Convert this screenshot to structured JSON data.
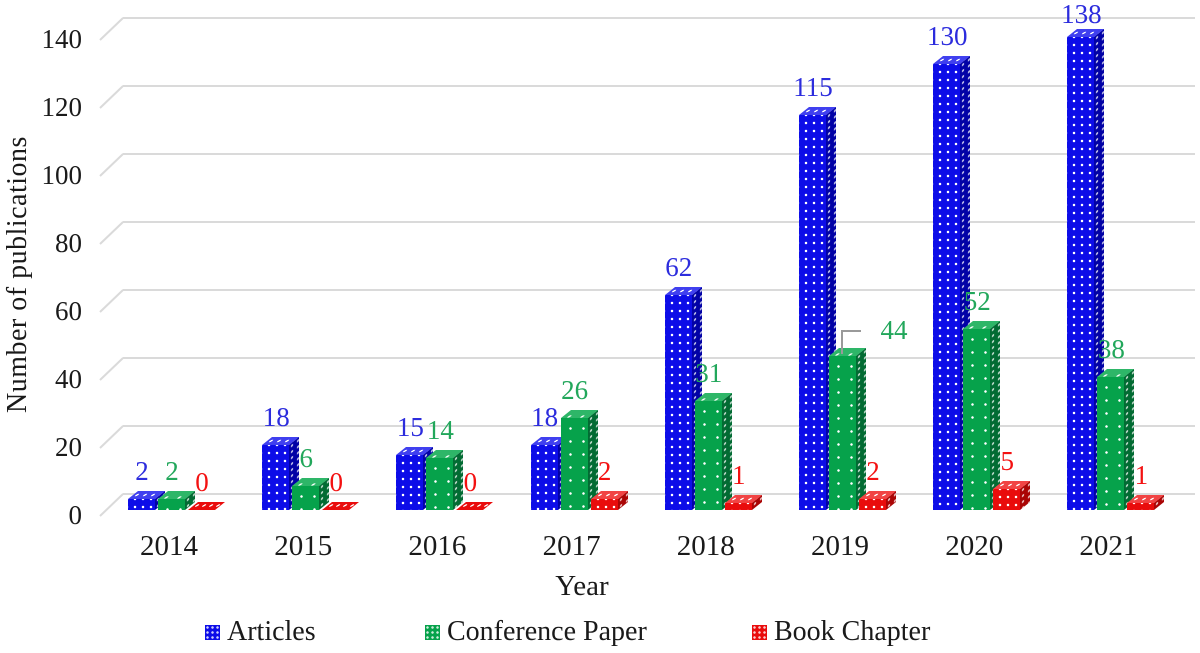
{
  "chart_data": {
    "type": "bar",
    "style": "3d-clustered-column",
    "title": "",
    "xlabel": "Year",
    "ylabel": "Number of publications",
    "categories": [
      "2014",
      "2015",
      "2016",
      "2017",
      "2018",
      "2019",
      "2020",
      "2021"
    ],
    "series": [
      {
        "name": "Articles",
        "values": [
          2,
          18,
          15,
          18,
          62,
          115,
          130,
          138
        ],
        "colors": {
          "front": "#0d0de8",
          "top": "#4040ef",
          "side": "#0202a6",
          "label": "#2c2cdd"
        },
        "dot_size": 8
      },
      {
        "name": "Conference Paper",
        "values": [
          2,
          6,
          14,
          26,
          31,
          44,
          52,
          38
        ],
        "colors": {
          "front": "#06a24b",
          "top": "#2eb668",
          "side": "#026b33",
          "label": "#22a75b"
        },
        "dot_size": 13
      },
      {
        "name": "Book Chapter",
        "values": [
          0,
          0,
          0,
          2,
          1,
          2,
          5,
          1
        ],
        "colors": {
          "front": "#e90c0c",
          "top": "#f14444",
          "side": "#aa0505",
          "label": "#f31111"
        },
        "dot_size": 8
      }
    ],
    "ylim": [
      0,
      140
    ],
    "yticks": [
      0,
      20,
      40,
      60,
      80,
      100,
      120,
      140
    ],
    "grid": true,
    "legend_position": "bottom",
    "annotations": {
      "callout": {
        "series_index": 1,
        "category_index": 5
      }
    }
  }
}
